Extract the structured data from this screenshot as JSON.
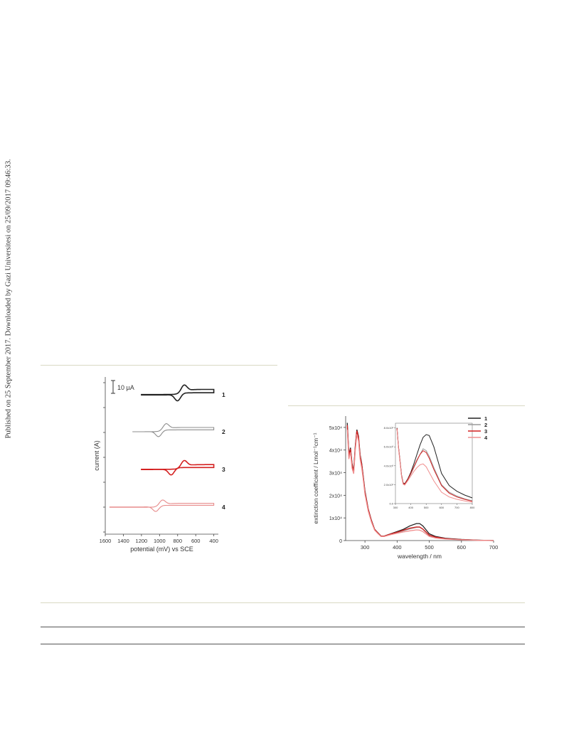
{
  "side_note": "Published on 25 September 2017. Downloaded by Gazi Universitesi on 25/09/2017 09:46:33.",
  "chart_data": [
    {
      "type": "line",
      "title": "",
      "xlabel": "potential (mV) vs SCE",
      "ylabel": "current (A)",
      "xlim": [
        1600,
        350
      ],
      "x_ticks": [
        1600,
        1400,
        1200,
        1000,
        800,
        600,
        400
      ],
      "x_tick_labels": [
        "1600",
        "1400",
        "1200",
        "1000",
        "800",
        "600",
        "400"
      ],
      "scale_bar": "10 µA",
      "legend": "labels-at-right",
      "grid": false,
      "series": [
        {
          "name": "1",
          "color": "#222222",
          "start": 1200,
          "end": 400,
          "e_ox": 730,
          "e_red": 800,
          "offset": 0
        },
        {
          "name": "2",
          "color": "#8c8c8c",
          "start": 1300,
          "end": 400,
          "e_ox": 930,
          "e_red": 1010,
          "offset": -1
        },
        {
          "name": "3",
          "color": "#d42020",
          "start": 1200,
          "end": 400,
          "e_ox": 730,
          "e_red": 870,
          "offset": -2
        },
        {
          "name": "4",
          "color": "#e78a8a",
          "start": 1550,
          "end": 400,
          "e_ox": 970,
          "e_red": 1040,
          "offset": -3
        }
      ]
    },
    {
      "type": "line",
      "title": "",
      "xlabel": "wavelength / nm",
      "ylabel": "extinction coefficient / Lmol⁻¹cm⁻¹",
      "xlim": [
        240,
        700
      ],
      "ylim": [
        0,
        55000
      ],
      "x_ticks": [
        300,
        400,
        500,
        600,
        700
      ],
      "x_tick_labels": [
        "300",
        "400",
        "500",
        "600",
        "700"
      ],
      "y_ticks": [
        0,
        10000,
        20000,
        30000,
        40000,
        50000
      ],
      "y_tick_labels": [
        "0",
        "1x10⁴",
        "2x10⁴",
        "3x10⁴",
        "4x10⁴",
        "5x10⁴"
      ],
      "legend": "top-right",
      "grid": false,
      "series": [
        {
          "name": "1",
          "color": "#222222",
          "x": [
            245,
            250,
            255,
            260,
            265,
            270,
            275,
            280,
            285,
            290,
            295,
            300,
            310,
            320,
            330,
            340,
            350,
            360,
            380,
            400,
            420,
            440,
            460,
            470,
            480,
            500,
            520,
            550,
            600,
            650,
            700
          ],
          "y": [
            52000,
            38000,
            41000,
            34000,
            31000,
            42000,
            49000,
            46000,
            38000,
            34000,
            28000,
            22000,
            14000,
            9000,
            5000,
            3500,
            2000,
            2000,
            3000,
            4000,
            5000,
            6500,
            7500,
            7500,
            6500,
            3000,
            1800,
            1000,
            500,
            200,
            0
          ]
        },
        {
          "name": "2",
          "color": "#9a9a9a",
          "x": [
            245,
            250,
            255,
            260,
            265,
            270,
            275,
            280,
            285,
            290,
            295,
            300,
            310,
            320,
            330,
            340,
            350,
            360,
            380,
            400,
            420,
            440,
            460,
            470,
            480,
            500,
            520,
            550,
            600,
            650,
            700
          ],
          "y": [
            50000,
            37000,
            40000,
            33000,
            30000,
            41000,
            48000,
            45000,
            37000,
            33000,
            27000,
            21000,
            13500,
            8500,
            4800,
            3300,
            1900,
            1900,
            2700,
            3500,
            4300,
            5200,
            5800,
            5900,
            5000,
            2200,
            1400,
            800,
            400,
            150,
            0
          ]
        },
        {
          "name": "3",
          "color": "#d42020",
          "x": [
            245,
            250,
            255,
            260,
            265,
            270,
            275,
            280,
            285,
            290,
            295,
            300,
            310,
            320,
            330,
            340,
            350,
            360,
            380,
            400,
            420,
            440,
            460,
            470,
            480,
            500,
            520,
            550,
            600,
            650,
            700
          ],
          "y": [
            51000,
            37500,
            40500,
            33500,
            30500,
            41500,
            48500,
            45500,
            37500,
            33500,
            27500,
            21500,
            13800,
            8800,
            4900,
            3400,
            1950,
            1950,
            2900,
            3700,
            4600,
            5500,
            6000,
            6000,
            5100,
            2400,
            1500,
            850,
            420,
            170,
            0
          ]
        },
        {
          "name": "4",
          "color": "#f08f8f",
          "x": [
            245,
            250,
            255,
            260,
            265,
            270,
            275,
            280,
            285,
            290,
            295,
            300,
            310,
            320,
            330,
            340,
            350,
            360,
            380,
            400,
            420,
            440,
            460,
            470,
            480,
            500,
            520,
            550,
            600,
            650,
            700
          ],
          "y": [
            49000,
            36000,
            39000,
            32000,
            29500,
            40000,
            47000,
            44000,
            36000,
            32000,
            26500,
            20500,
            13000,
            8200,
            4600,
            3100,
            1800,
            1800,
            2600,
            3200,
            3800,
            4300,
            4700,
            4600,
            4000,
            1800,
            1100,
            650,
            300,
            100,
            0
          ]
        }
      ],
      "inset": {
        "xlim": [
          300,
          800
        ],
        "ylim": [
          0,
          8500
        ],
        "x_ticks": [
          300,
          400,
          500,
          600,
          700,
          800
        ],
        "x_tick_labels": [
          "300",
          "400",
          "500",
          "600",
          "700",
          "800"
        ],
        "y_ticks": [
          0,
          2000,
          4000,
          6000,
          8000
        ],
        "y_tick_labels": [
          "0.0",
          "2.0x10³",
          "4.0x10³",
          "6.0x10³",
          "8.0x10³"
        ],
        "series": [
          {
            "name": "1",
            "color": "#222222",
            "x": [
              310,
              320,
              330,
              340,
              350,
              360,
              380,
              400,
              420,
              440,
              460,
              480,
              500,
              520,
              550,
              600,
              650,
              700,
              750,
              800
            ],
            "y": [
              8000,
              6000,
              4500,
              3000,
              2200,
              2100,
              2600,
              3300,
              4200,
              5200,
              6200,
              7000,
              7300,
              7200,
              6000,
              3200,
              1900,
              1300,
              900,
              600
            ]
          },
          {
            "name": "2",
            "color": "#9a9a9a",
            "x": [
              310,
              320,
              330,
              340,
              350,
              360,
              380,
              400,
              420,
              440,
              460,
              480,
              500,
              520,
              550,
              600,
              650,
              700,
              750,
              800
            ],
            "y": [
              7900,
              5900,
              4400,
              2900,
              2100,
              2000,
              2500,
              3100,
              3800,
              4500,
              5200,
              5800,
              5600,
              5000,
              3800,
              2000,
              1200,
              800,
              500,
              300
            ]
          },
          {
            "name": "3",
            "color": "#d42020",
            "x": [
              310,
              320,
              330,
              340,
              350,
              360,
              380,
              400,
              420,
              440,
              460,
              480,
              500,
              520,
              550,
              600,
              650,
              700,
              750,
              800
            ],
            "y": [
              7950,
              5950,
              4450,
              2950,
              2150,
              2050,
              2550,
              3200,
              3900,
              4600,
              5200,
              5600,
              5400,
              4800,
              3600,
              1900,
              1100,
              700,
              450,
              250
            ]
          },
          {
            "name": "4",
            "color": "#f08f8f",
            "x": [
              310,
              320,
              330,
              340,
              350,
              360,
              380,
              400,
              420,
              440,
              460,
              480,
              500,
              520,
              550,
              600,
              650,
              700,
              750,
              800
            ],
            "y": [
              7850,
              5850,
              4350,
              2850,
              2050,
              1950,
              2400,
              2900,
              3400,
              3800,
              4100,
              4200,
              3900,
              3300,
              2400,
              1200,
              700,
              450,
              280,
              150
            ]
          }
        ]
      }
    }
  ]
}
